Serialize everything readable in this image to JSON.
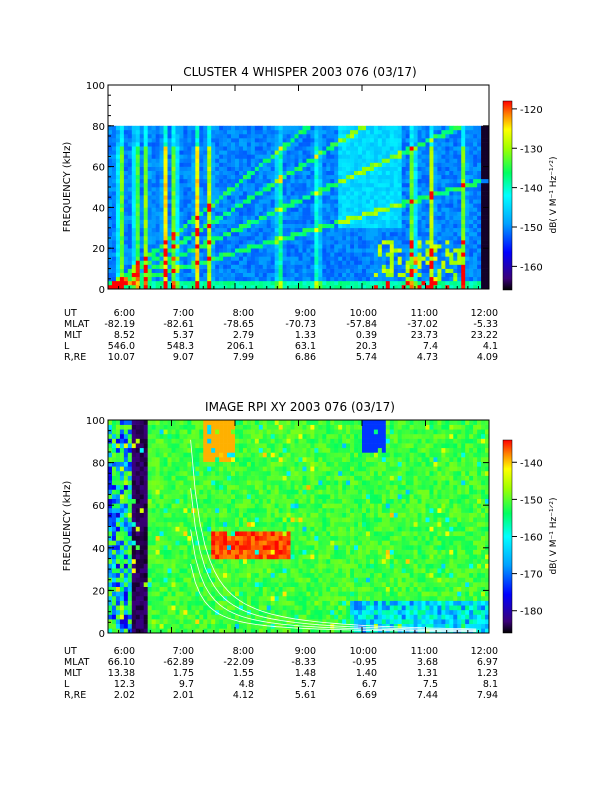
{
  "chart_data": [
    {
      "type": "heatmap",
      "title": "CLUSTER 4 WHISPER 2003 076 (03/17)",
      "ylabel": "FREQUENCY (kHz)",
      "ylim": [
        0,
        100
      ],
      "y_ticks": [
        "0",
        "20",
        "40",
        "60",
        "80",
        "100"
      ],
      "data_ymax": 80,
      "x_hours": [
        6,
        12
      ],
      "x_ticks": [
        "6:00",
        "7:00",
        "8:00",
        "9:00",
        "10:00",
        "11:00",
        "12:00"
      ],
      "colorbar": {
        "label": "dB( V M⁻¹ Hz⁻¹ᐟ²)",
        "range": [
          -166,
          -118
        ],
        "ticks": [
          "-120",
          "-130",
          "-140",
          "-150",
          "-160"
        ],
        "tick_values": [
          -120,
          -130,
          -140,
          -150,
          -160
        ]
      },
      "ephemeris": [
        {
          "label": "UT",
          "values": [
            "6:00",
            "7:00",
            "8:00",
            "9:00",
            "10:00",
            "11:00",
            "12:00"
          ]
        },
        {
          "label": "MLAT",
          "values": [
            "-82.19",
            "-82.61",
            "-78.65",
            "-70.73",
            "-57.84",
            "-37.02",
            "-5.33"
          ]
        },
        {
          "label": "MLT",
          "values": [
            "8.52",
            "5.37",
            "2.79",
            "1.33",
            "0.39",
            "23.73",
            "23.22"
          ]
        },
        {
          "label": "L",
          "values": [
            "546.0",
            "548.3",
            "206.1",
            "63.1",
            "20.3",
            "7.4",
            "4.1"
          ]
        },
        {
          "label": "R,RE",
          "values": [
            "10.07",
            "9.07",
            "7.99",
            "6.86",
            "5.74",
            "4.73",
            "4.09"
          ]
        }
      ]
    },
    {
      "type": "heatmap",
      "title": "IMAGE RPI XY 2003 076 (03/17)",
      "ylabel": "FREQUENCY (kHz)",
      "ylim": [
        0,
        100
      ],
      "y_ticks": [
        "0",
        "20",
        "40",
        "60",
        "80",
        "100"
      ],
      "data_ymax": 100,
      "x_hours": [
        6,
        12
      ],
      "x_ticks": [
        "6:00",
        "7:00",
        "8:00",
        "9:00",
        "10:00",
        "11:00",
        "12:00"
      ],
      "colorbar": {
        "label": "dB( V M⁻¹ Hz⁻¹ᐟ²)",
        "range": [
          -186,
          -134
        ],
        "ticks": [
          "-140",
          "-150",
          "-160",
          "-170",
          "-180"
        ],
        "tick_values": [
          -140,
          -150,
          -160,
          -170,
          -180
        ]
      },
      "ephemeris": [
        {
          "label": "UT",
          "values": [
            "6:00",
            "7:00",
            "8:00",
            "9:00",
            "10:00",
            "11:00",
            "12:00"
          ]
        },
        {
          "label": "MLAT",
          "values": [
            "66.10",
            "-62.89",
            "-22.09",
            "-8.33",
            "-0.95",
            "3.68",
            "6.97"
          ]
        },
        {
          "label": "MLT",
          "values": [
            "13.38",
            "1.75",
            "1.55",
            "1.48",
            "1.40",
            "1.31",
            "1.23"
          ]
        },
        {
          "label": "L",
          "values": [
            "12.3",
            "9.7",
            "4.8",
            "5.7",
            "6.7",
            "7.5",
            "8.1"
          ]
        },
        {
          "label": "R,RE",
          "values": [
            "2.02",
            "2.01",
            "4.12",
            "5.61",
            "6.69",
            "7.44",
            "7.94"
          ]
        }
      ]
    }
  ]
}
